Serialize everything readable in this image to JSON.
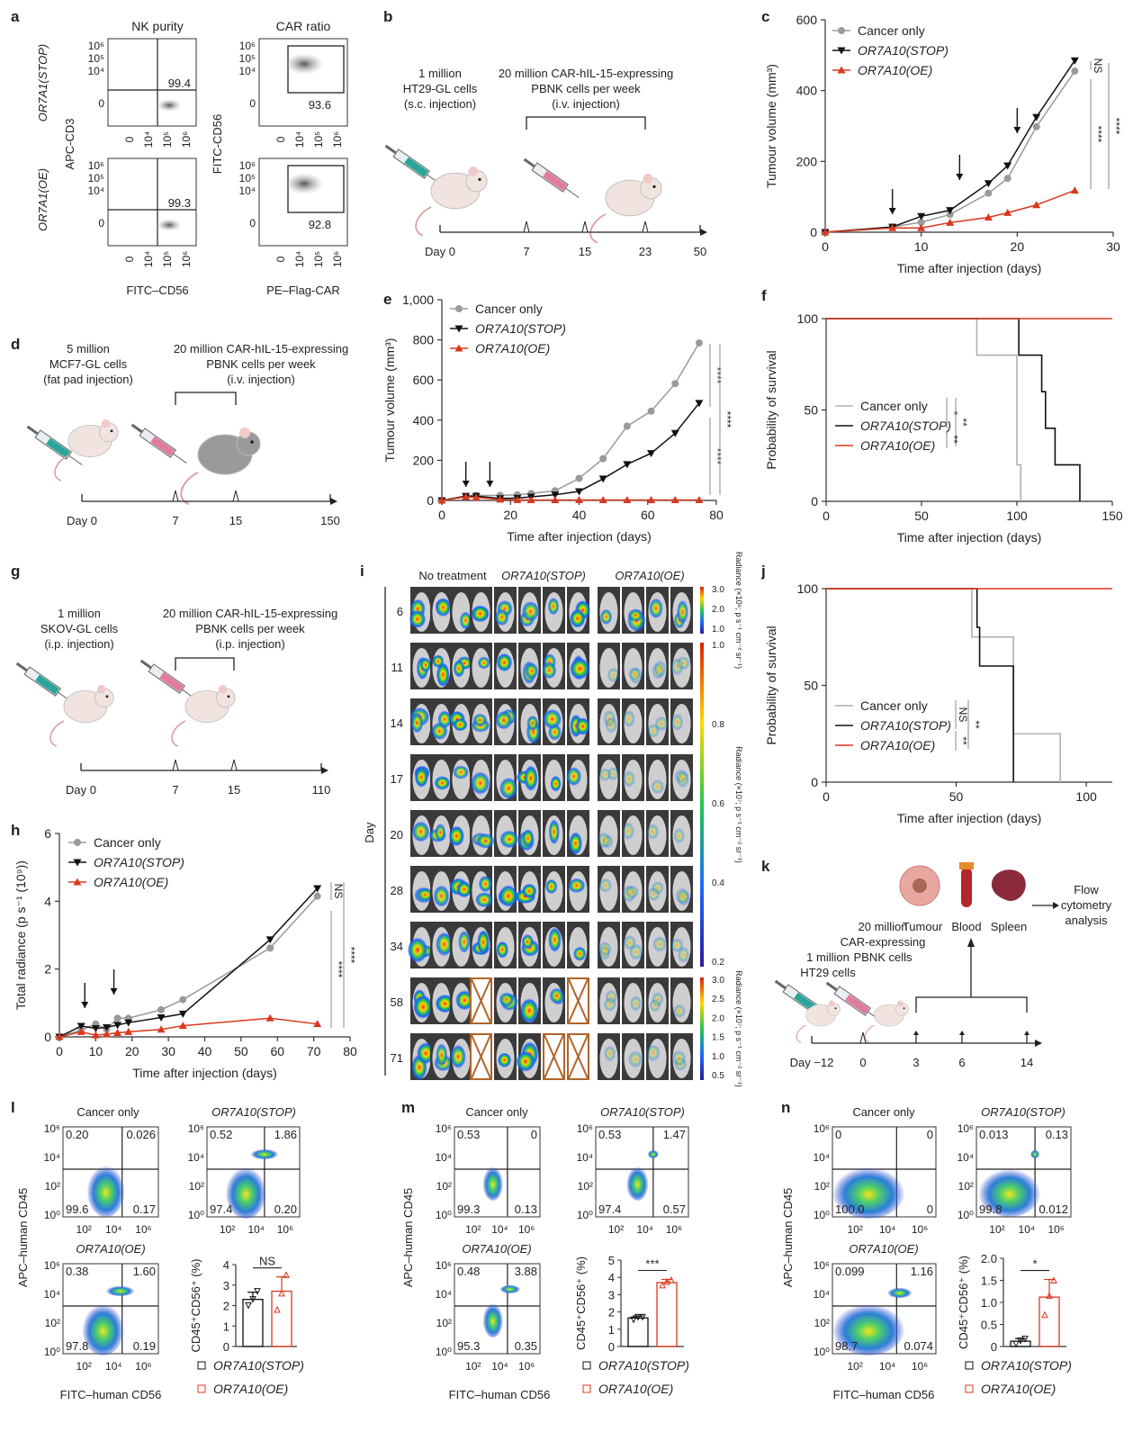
{
  "panel_labels": {
    "a": "a",
    "b": "b",
    "c": "c",
    "d": "d",
    "e": "e",
    "f": "f",
    "g": "g",
    "h": "h",
    "i": "i",
    "j": "j",
    "k": "k",
    "l": "l",
    "m": "m",
    "n": "n"
  },
  "colors": {
    "cancer_only": "#9a9a9a",
    "stop": "#111111",
    "oe": "#d9381e"
  },
  "panel_a": {
    "col_titles": [
      "NK purity",
      "CAR ratio"
    ],
    "row_labels": [
      "OR7A1(STOP)",
      "OR7A1(OE)"
    ],
    "y_labels": [
      "APC-CD3",
      "FITC-CD56"
    ],
    "x_labels": [
      "FITC–CD56",
      "PE–Flag-CAR"
    ],
    "tick_labels": [
      "0",
      "10⁴",
      "10⁵",
      "10⁶"
    ],
    "values": [
      "99.4",
      "93.6",
      "99.3",
      "92.8"
    ]
  },
  "panel_b": {
    "cells_text": [
      "1 million",
      "HT29-GL cells",
      "(s.c. injection)"
    ],
    "nk_text": [
      "20 million CAR-hIL-15-expressing",
      "PBNK cells per week",
      "(i.v. injection)"
    ],
    "timeline": [
      "Day 0",
      "7",
      "15",
      "23",
      "50"
    ]
  },
  "panel_d": {
    "cells_text": [
      "5 million",
      "MCF7-GL cells",
      "(fat pad injection)"
    ],
    "nk_text": [
      "20 million CAR-hIL-15-expressing",
      "PBNK cells per week",
      "(i.v. injection)"
    ],
    "timeline": [
      "Day 0",
      "7",
      "15",
      "150"
    ]
  },
  "panel_g": {
    "cells_text": [
      "1 million",
      "SKOV-GL cells",
      "(i.p. injection)"
    ],
    "nk_text": [
      "20 million CAR-hIL-15-expressing",
      "PBNK cells per week",
      "(i.p. injection)"
    ],
    "timeline": [
      "Day 0",
      "7",
      "15",
      "110"
    ]
  },
  "panel_k": {
    "cells_text": [
      "1 million",
      "HT29 cells"
    ],
    "nk_text": [
      "20 million",
      "CAR-expressing",
      "PBNK cells"
    ],
    "organs": [
      "Tumour",
      "Blood",
      "Spleen"
    ],
    "analysis": [
      "Flow",
      "cytometry",
      "analysis"
    ],
    "timeline": [
      "Day −12",
      "0",
      "3",
      "6",
      "14"
    ]
  },
  "panel_i": {
    "groups": [
      "No treatment",
      "OR7A10(STOP)",
      "OR7A10(OE)"
    ],
    "y_label": "Day",
    "days": [
      "6",
      "11",
      "14",
      "17",
      "20",
      "28",
      "34",
      "58",
      "71"
    ],
    "colorbars": [
      {
        "title": "Radiance (×10⁶; p s⁻¹ cm⁻² sr⁻¹)",
        "ticks": [
          "3.0",
          "2.0",
          "1.0"
        ]
      },
      {
        "title": "Radiance (×10⁷; p s⁻¹ cm⁻² sr⁻¹)",
        "ticks": [
          "1.0",
          "0.8",
          "0.6",
          "0.4",
          "0.2"
        ]
      },
      {
        "title": "Radiance (×10⁷; p s⁻¹ cm⁻² sr⁻¹)",
        "ticks": [
          "3.0",
          "2.5",
          "2.0",
          "1.5",
          "1.0",
          "0.5"
        ]
      }
    ],
    "excluded": {
      "58": [
        3,
        7
      ],
      "71": [
        3,
        6,
        7
      ]
    }
  },
  "flow_panels": [
    {
      "panel": "l",
      "xlabel": "FITC–human CD56",
      "ylabel": "APC–human CD45",
      "ticks": [
        "10⁰",
        "10²",
        "10⁴",
        "10⁶"
      ],
      "plots": [
        {
          "title": "Cancer only",
          "ul": "0.20",
          "ur": "0.026",
          "ll": "99.6",
          "lr": "0.17"
        },
        {
          "title": "OR7A10(STOP)",
          "ul": "0.52",
          "ur": "1.86",
          "ll": "97.4",
          "lr": "0.20"
        },
        {
          "title": "OR7A10(OE)",
          "ul": "0.38",
          "ur": "1.60",
          "ll": "97.8",
          "lr": "0.19"
        }
      ]
    },
    {
      "panel": "m",
      "xlabel": "FITC–human CD56",
      "ylabel": "APC–human CD45",
      "ticks": [
        "10⁰",
        "10²",
        "10⁴",
        "10⁶"
      ],
      "plots": [
        {
          "title": "Cancer only",
          "ul": "0.53",
          "ur": "0",
          "ll": "99.3",
          "lr": "0.13"
        },
        {
          "title": "OR7A10(STOP)",
          "ul": "0.53",
          "ur": "1.47",
          "ll": "97.4",
          "lr": "0.57"
        },
        {
          "title": "OR7A10(OE)",
          "ul": "0.48",
          "ur": "3.88",
          "ll": "95.3",
          "lr": "0.35"
        }
      ]
    },
    {
      "panel": "n",
      "xlabel": "FITC–human CD56",
      "ylabel": "APC–human CD45",
      "ticks": [
        "10⁰",
        "10²",
        "10⁴",
        "10⁶"
      ],
      "plots": [
        {
          "title": "Cancer only",
          "ul": "0",
          "ur": "0",
          "ll": "100.0",
          "lr": "0"
        },
        {
          "title": "OR7A10(STOP)",
          "ul": "0.013",
          "ur": "0.13",
          "ll": "99.8",
          "lr": "0.012"
        },
        {
          "title": "OR7A10(OE)",
          "ul": "0.099",
          "ur": "1.16",
          "ll": "98.7",
          "lr": "0.074"
        }
      ]
    }
  ],
  "chart_data": [
    {
      "panel": "c",
      "type": "line",
      "xlabel": "Time after injection (days)",
      "ylabel": "Tumour volume (mm³)",
      "xlim": [
        0,
        30
      ],
      "ylim": [
        0,
        600
      ],
      "xticks": [
        0,
        10,
        20,
        30
      ],
      "xtick_labels": [
        "0",
        "10",
        "20",
        "30"
      ],
      "yticks": [
        0,
        200,
        400,
        600
      ],
      "ytick_labels": [
        "0",
        "200",
        "400",
        "600"
      ],
      "x": [
        0,
        7,
        10,
        13,
        17,
        19,
        22,
        26
      ],
      "series": [
        {
          "name": "Cancer only",
          "color": "#9a9a9a",
          "marker": "circle",
          "values": [
            0,
            15,
            28,
            50,
            110,
            152,
            298,
            455
          ]
        },
        {
          "name": "OR7A10(STOP)",
          "color": "#111111",
          "marker": "triangle-down",
          "values": [
            0,
            15,
            45,
            62,
            138,
            188,
            325,
            485
          ]
        },
        {
          "name": "OR7A10(OE)",
          "color": "#d9381e",
          "marker": "triangle-up",
          "values": [
            0,
            12,
            12,
            27,
            42,
            55,
            77,
            118
          ]
        }
      ],
      "treatment_arrows": [
        7,
        14,
        20
      ],
      "significance": [
        "NS",
        "****",
        "****"
      ],
      "legend": "top-left"
    },
    {
      "panel": "e",
      "type": "line",
      "xlabel": "Time after injection (days)",
      "ylabel": "Tumour volume (mm³)",
      "xlim": [
        0,
        80
      ],
      "ylim": [
        0,
        1000
      ],
      "xticks": [
        0,
        20,
        40,
        60,
        80
      ],
      "xtick_labels": [
        "0",
        "20",
        "40",
        "60",
        "80"
      ],
      "yticks": [
        0,
        200,
        400,
        600,
        800,
        1000
      ],
      "ytick_labels": [
        "0",
        "200",
        "400",
        "600",
        "800",
        "1,000"
      ],
      "x": [
        0,
        7,
        10,
        17,
        22,
        26,
        33,
        40,
        47,
        54,
        61,
        68,
        75
      ],
      "series": [
        {
          "name": "Cancer only",
          "color": "#9a9a9a",
          "marker": "circle",
          "values": [
            0,
            20,
            25,
            25,
            28,
            35,
            48,
            110,
            208,
            370,
            445,
            582,
            785
          ]
        },
        {
          "name": "OR7A10(STOP)",
          "color": "#111111",
          "marker": "triangle-down",
          "values": [
            0,
            22,
            22,
            10,
            12,
            18,
            28,
            45,
            108,
            180,
            235,
            335,
            485
          ]
        },
        {
          "name": "OR7A10(OE)",
          "color": "#d9381e",
          "marker": "triangle-up",
          "values": [
            0,
            18,
            15,
            5,
            3,
            2,
            2,
            2,
            2,
            2,
            2,
            2,
            2
          ]
        }
      ],
      "treatment_arrows": [
        7,
        14
      ],
      "significance": [
        "****",
        "****",
        "****"
      ],
      "legend": "top-left"
    },
    {
      "panel": "f",
      "type": "line",
      "subtype": "survival-step",
      "xlabel": "Time after injection (days)",
      "ylabel": "Probability of survival",
      "xlim": [
        0,
        150
      ],
      "ylim": [
        0,
        100
      ],
      "xticks": [
        0,
        50,
        100,
        150
      ],
      "xtick_labels": [
        "0",
        "50",
        "100",
        "150"
      ],
      "yticks": [
        0,
        50,
        100
      ],
      "ytick_labels": [
        "0",
        "50",
        "100"
      ],
      "series": [
        {
          "name": "Cancer only",
          "color": "#b0b0b0",
          "points": [
            [
              0,
              100
            ],
            [
              79,
              100
            ],
            [
              79,
              80
            ],
            [
              100,
              80
            ],
            [
              100,
              20
            ],
            [
              102,
              20
            ],
            [
              102,
              0
            ]
          ]
        },
        {
          "name": "OR7A10(STOP)",
          "color": "#111111",
          "points": [
            [
              0,
              100
            ],
            [
              101,
              100
            ],
            [
              101,
              80
            ],
            [
              113,
              80
            ],
            [
              113,
              60
            ],
            [
              115,
              60
            ],
            [
              115,
              40
            ],
            [
              120,
              40
            ],
            [
              120,
              20
            ],
            [
              133,
              20
            ],
            [
              133,
              0
            ]
          ]
        },
        {
          "name": "OR7A10(OE)",
          "color": "#d9381e",
          "points": [
            [
              0,
              100
            ],
            [
              150,
              100
            ]
          ]
        }
      ],
      "significance": [
        "*",
        "**",
        "**"
      ],
      "legend": "middle-left"
    },
    {
      "panel": "h",
      "type": "line",
      "xlabel": "Time after injection (days)",
      "ylabel": "Total radiance (p s⁻¹ (10⁹))",
      "xlim": [
        0,
        80
      ],
      "ylim": [
        0,
        6
      ],
      "xticks": [
        0,
        10,
        20,
        30,
        40,
        50,
        60,
        70,
        80
      ],
      "xtick_labels": [
        "0",
        "10",
        "20",
        "30",
        "40",
        "50",
        "60",
        "70",
        "80"
      ],
      "yticks": [
        0,
        2,
        4,
        6
      ],
      "ytick_labels": [
        "0",
        "2",
        "4",
        "6"
      ],
      "x": [
        0,
        6,
        10,
        13,
        16,
        19,
        28,
        34,
        58,
        71
      ],
      "series": [
        {
          "name": "Cancer only",
          "color": "#9a9a9a",
          "marker": "circle",
          "values": [
            0,
            0.2,
            0.38,
            0.22,
            0.55,
            0.55,
            0.8,
            1.1,
            2.62,
            4.15
          ]
        },
        {
          "name": "OR7A10(STOP)",
          "color": "#111111",
          "marker": "triangle-down",
          "values": [
            0,
            0.32,
            0.25,
            0.28,
            0.35,
            0.42,
            0.57,
            0.68,
            2.87,
            4.38
          ]
        },
        {
          "name": "OR7A10(OE)",
          "color": "#d9381e",
          "marker": "triangle-up",
          "values": [
            0,
            0.15,
            0.05,
            0.08,
            0.12,
            0.15,
            0.22,
            0.33,
            0.55,
            0.38
          ]
        }
      ],
      "treatment_arrows": [
        7,
        15
      ],
      "significance": [
        "NS",
        "****",
        "****"
      ],
      "legend": "top-left"
    },
    {
      "panel": "j",
      "type": "line",
      "subtype": "survival-step",
      "xlabel": "Time after injection (days)",
      "ylabel": "Probability of survival",
      "xlim": [
        0,
        110
      ],
      "ylim": [
        0,
        100
      ],
      "xticks": [
        0,
        50,
        100
      ],
      "xtick_labels": [
        "0",
        "50",
        "100"
      ],
      "yticks": [
        0,
        50,
        100
      ],
      "ytick_labels": [
        "0",
        "50",
        "100"
      ],
      "series": [
        {
          "name": "Cancer only",
          "color": "#b0b0b0",
          "points": [
            [
              0,
              100
            ],
            [
              56,
              100
            ],
            [
              56,
              75
            ],
            [
              72,
              75
            ],
            [
              72,
              25
            ],
            [
              90,
              25
            ],
            [
              90,
              0
            ]
          ]
        },
        {
          "name": "OR7A10(STOP)",
          "color": "#111111",
          "points": [
            [
              0,
              100
            ],
            [
              58,
              100
            ],
            [
              58,
              80
            ],
            [
              59,
              80
            ],
            [
              59,
              60
            ],
            [
              72,
              60
            ],
            [
              72,
              0
            ]
          ]
        },
        {
          "name": "OR7A10(OE)",
          "color": "#d9381e",
          "points": [
            [
              0,
              100
            ],
            [
              110,
              100
            ]
          ]
        }
      ],
      "significance": [
        "NS",
        "**",
        "**"
      ],
      "legend": "middle-left"
    },
    {
      "panel": "l",
      "type": "bar",
      "ylabel": "CD45⁺CD56⁺ (%)",
      "categories": [
        "OR7A10(STOP)",
        "OR7A10(OE)"
      ],
      "values": [
        2.3,
        2.7
      ],
      "errors": [
        0.35,
        0.7
      ],
      "points": [
        [
          2.0,
          2.3,
          2.7
        ],
        [
          1.8,
          2.6,
          3.5
        ]
      ],
      "colors": [
        "#111111",
        "#d9381e"
      ],
      "ylim": [
        0,
        4
      ],
      "yticks": [
        0,
        1,
        2,
        3,
        4
      ],
      "ytick_labels": [
        "0",
        "1",
        "2",
        "3",
        "4"
      ],
      "significance": "NS",
      "legend": "bottom"
    },
    {
      "panel": "m",
      "type": "bar",
      "ylabel": "CD45⁺CD56⁺ (%)",
      "categories": [
        "OR7A10(STOP)",
        "OR7A10(OE)"
      ],
      "values": [
        1.65,
        3.7
      ],
      "errors": [
        0.12,
        0.18
      ],
      "points": [
        [
          1.55,
          1.7,
          1.7
        ],
        [
          3.55,
          3.75,
          3.85
        ]
      ],
      "colors": [
        "#111111",
        "#d9381e"
      ],
      "ylim": [
        0,
        5
      ],
      "yticks": [
        0,
        1,
        2,
        3,
        4,
        5
      ],
      "ytick_labels": [
        "0",
        "1",
        "2",
        "3",
        "4",
        "5"
      ],
      "significance": "***",
      "legend": "bottom"
    },
    {
      "panel": "n",
      "type": "bar",
      "ylabel": "CD45⁺CD56⁺ (%)",
      "categories": [
        "OR7A10(STOP)",
        "OR7A10(OE)"
      ],
      "values": [
        0.12,
        1.12
      ],
      "errors": [
        0.06,
        0.4
      ],
      "points": [
        [
          0.06,
          0.13,
          0.17
        ],
        [
          0.72,
          1.15,
          1.5
        ]
      ],
      "colors": [
        "#111111",
        "#d9381e"
      ],
      "ylim": [
        0,
        2
      ],
      "yticks": [
        0,
        0.5,
        1,
        1.5,
        2
      ],
      "ytick_labels": [
        "0",
        "0.5",
        "1.0",
        "1.5",
        "2.0"
      ],
      "significance": "*",
      "legend": "bottom"
    }
  ]
}
